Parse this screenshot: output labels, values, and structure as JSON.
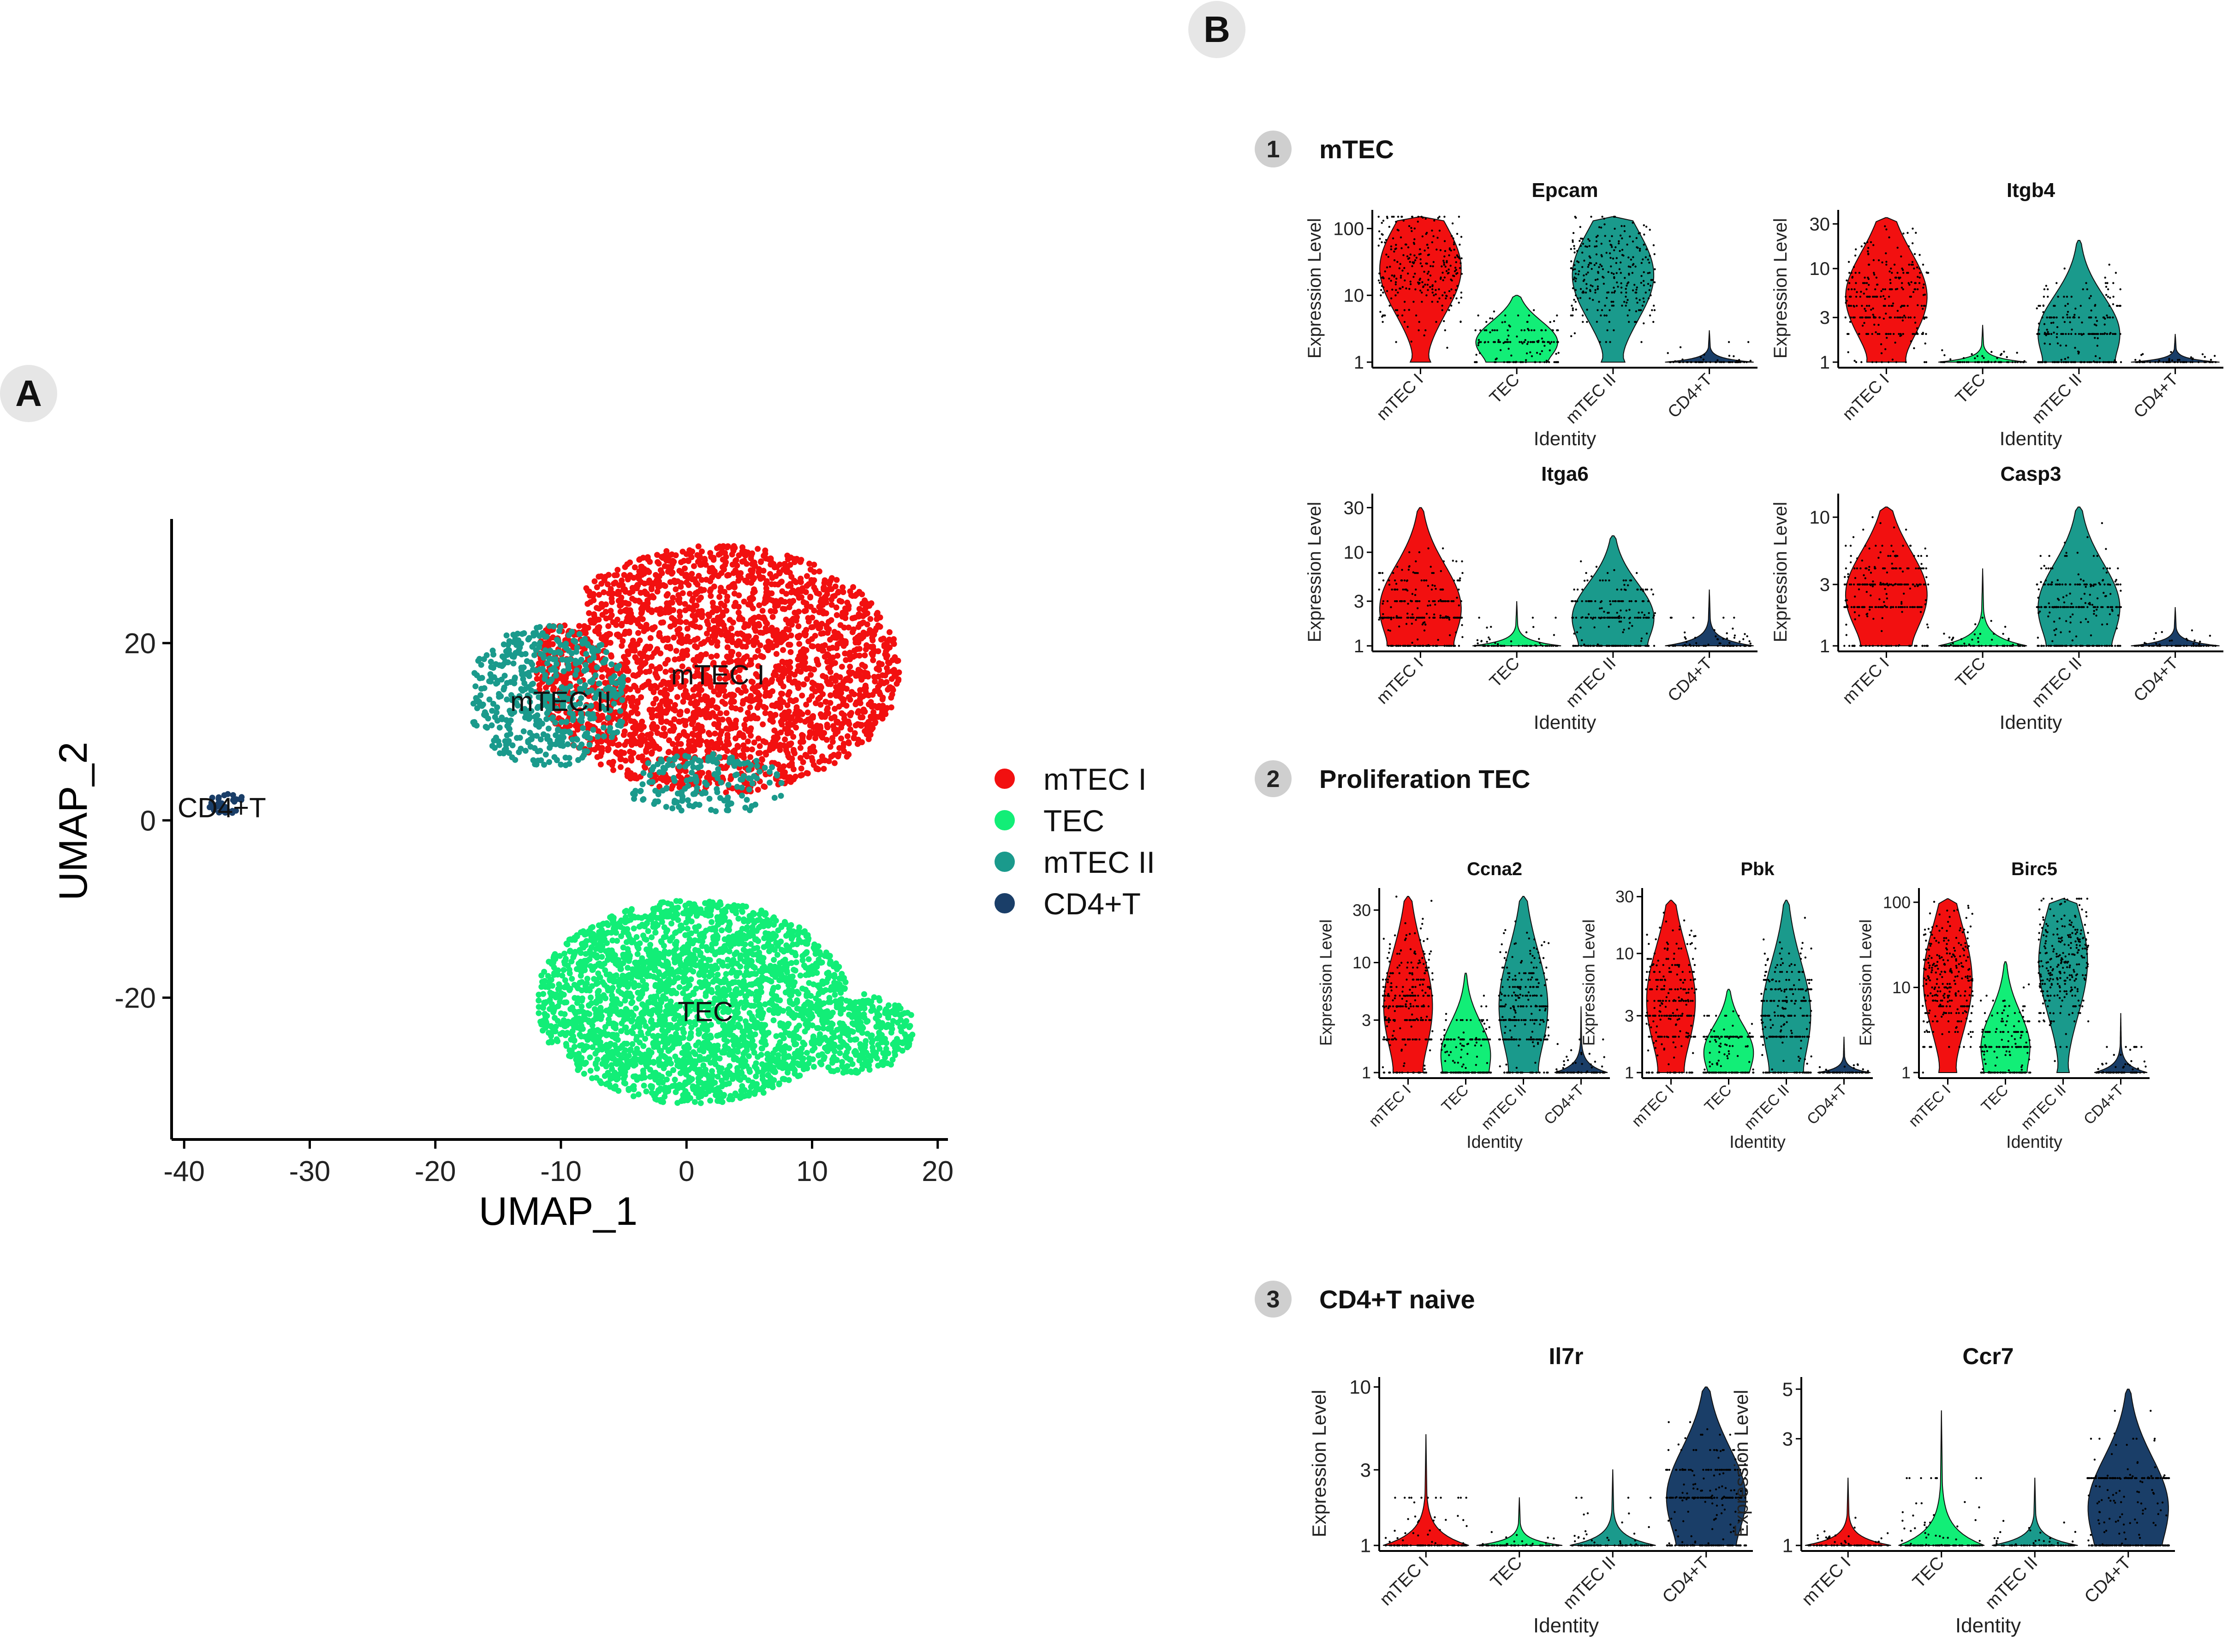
{
  "panel_labels": {
    "a": "A",
    "b": "B"
  },
  "colors": {
    "mTEC I": "#f21010",
    "TEC": "#12ee77",
    "mTEC II": "#1a9a8c",
    "CD4+T": "#1a3e68",
    "badge": "#cfcfcf",
    "badge_num": "#9a9a9a"
  },
  "sections": [
    {
      "num": "1",
      "title": "mTEC"
    },
    {
      "num": "2",
      "title": "Proliferation TEC"
    },
    {
      "num": "3",
      "title": "CD4+T naive"
    }
  ],
  "chart_data": [
    {
      "id": "umap",
      "type": "scatter",
      "title": "",
      "xlabel": "UMAP_1",
      "ylabel": "UMAP_2",
      "xlim": [
        -41,
        21
      ],
      "ylim": [
        -36,
        34
      ],
      "xticks": [
        -40,
        -30,
        -20,
        -10,
        0,
        10,
        20
      ],
      "yticks": [
        20,
        0,
        -20
      ],
      "legend": {
        "position": "right",
        "entries": [
          "mTEC I",
          "TEC",
          "mTEC II",
          "CD4+T"
        ]
      },
      "cluster_labels": [
        {
          "text": "mTEC I",
          "x": 2.5,
          "y": 16.5
        },
        {
          "text": "mTEC II",
          "x": -10,
          "y": 13.5
        },
        {
          "text": "TEC",
          "x": 1.5,
          "y": -21.5
        },
        {
          "text": "CD4+T",
          "x": -37,
          "y": 1.5
        }
      ],
      "series": [
        {
          "name": "mTEC I",
          "approx_center": [
            3,
            16
          ],
          "approx_extent": [
            [
              -13,
              17
            ],
            [
              1,
              31
            ]
          ],
          "approx_points": 2600
        },
        {
          "name": "mTEC II",
          "approx_center": [
            -12,
            13
          ],
          "approx_extent": [
            [
              -17,
              8
            ],
            [
              1,
              22
            ]
          ],
          "approx_points": 700
        },
        {
          "name": "TEC",
          "approx_center": [
            1,
            -21
          ],
          "approx_extent": [
            [
              -13,
              18
            ],
            [
              -32,
              -9
            ]
          ],
          "approx_points": 2800
        },
        {
          "name": "CD4+T",
          "approx_center": [
            -36.5,
            1.8
          ],
          "approx_extent": [
            [
              -38,
              -35
            ],
            [
              1,
              3
            ]
          ],
          "approx_points": 40
        }
      ]
    },
    {
      "id": "violin",
      "type": "violin",
      "xlabel": "Identity",
      "ylabel": "Expression Level",
      "y_scale": "log",
      "categories": [
        "mTEC I",
        "TEC",
        "mTEC II",
        "CD4+T"
      ],
      "genes": [
        {
          "gene": "Epcam",
          "section": "1",
          "yticks": [
            1,
            10,
            100
          ],
          "ymax": 150,
          "groups": [
            {
              "med": 25,
              "max": 150
            },
            {
              "med": 2,
              "max": 10
            },
            {
              "med": 20,
              "max": 150
            },
            {
              "med": 1,
              "max": 3
            }
          ]
        },
        {
          "gene": "Itgb4",
          "section": "1",
          "yticks": [
            1,
            3,
            10,
            30
          ],
          "ymax": 35,
          "groups": [
            {
              "med": 5,
              "max": 35
            },
            {
              "med": 1.1,
              "max": 2.5
            },
            {
              "med": 2,
              "max": 20
            },
            {
              "med": 1,
              "max": 2
            }
          ]
        },
        {
          "gene": "Itga6",
          "section": "1",
          "yticks": [
            1,
            3,
            10,
            30
          ],
          "ymax": 35,
          "groups": [
            {
              "med": 2.5,
              "max": 30
            },
            {
              "med": 1.1,
              "max": 3
            },
            {
              "med": 2,
              "max": 15
            },
            {
              "med": 1.1,
              "max": 4
            }
          ]
        },
        {
          "gene": "Casp3",
          "section": "1",
          "yticks": [
            1,
            3,
            10
          ],
          "ymax": 13,
          "groups": [
            {
              "med": 2.5,
              "max": 12
            },
            {
              "med": 1.1,
              "max": 4
            },
            {
              "med": 2,
              "max": 12
            },
            {
              "med": 1,
              "max": 2
            }
          ]
        },
        {
          "gene": "Ccna2",
          "section": "2",
          "yticks": [
            1,
            3,
            10,
            30
          ],
          "ymax": 40,
          "groups": [
            {
              "med": 4,
              "max": 40
            },
            {
              "med": 1.5,
              "max": 8
            },
            {
              "med": 4,
              "max": 40
            },
            {
              "med": 1,
              "max": 4
            }
          ]
        },
        {
          "gene": "Pbk",
          "section": "2",
          "yticks": [
            1,
            3,
            10,
            30
          ],
          "ymax": 30,
          "groups": [
            {
              "med": 4,
              "max": 28
            },
            {
              "med": 1.5,
              "max": 5
            },
            {
              "med": 3,
              "max": 28
            },
            {
              "med": 1,
              "max": 2
            }
          ]
        },
        {
          "gene": "Birc5",
          "section": "2",
          "yticks": [
            1,
            10,
            100
          ],
          "ymax": 120,
          "groups": [
            {
              "med": 12,
              "max": 110
            },
            {
              "med": 2,
              "max": 20
            },
            {
              "med": 20,
              "max": 110
            },
            {
              "med": 1.2,
              "max": 5
            }
          ]
        },
        {
          "gene": "Il7r",
          "section": "3",
          "yticks": [
            1,
            3,
            10
          ],
          "ymax": 10,
          "groups": [
            {
              "med": 1,
              "max": 5
            },
            {
              "med": 1,
              "max": 2
            },
            {
              "med": 1,
              "max": 3
            },
            {
              "med": 2,
              "max": 10
            }
          ]
        },
        {
          "gene": "Ccr7",
          "section": "3",
          "yticks": [
            1,
            3,
            5
          ],
          "ymax": 5,
          "groups": [
            {
              "med": 1,
              "max": 2
            },
            {
              "med": 1,
              "max": 4
            },
            {
              "med": 1,
              "max": 2
            },
            {
              "med": 1.5,
              "max": 5
            }
          ]
        }
      ]
    }
  ]
}
